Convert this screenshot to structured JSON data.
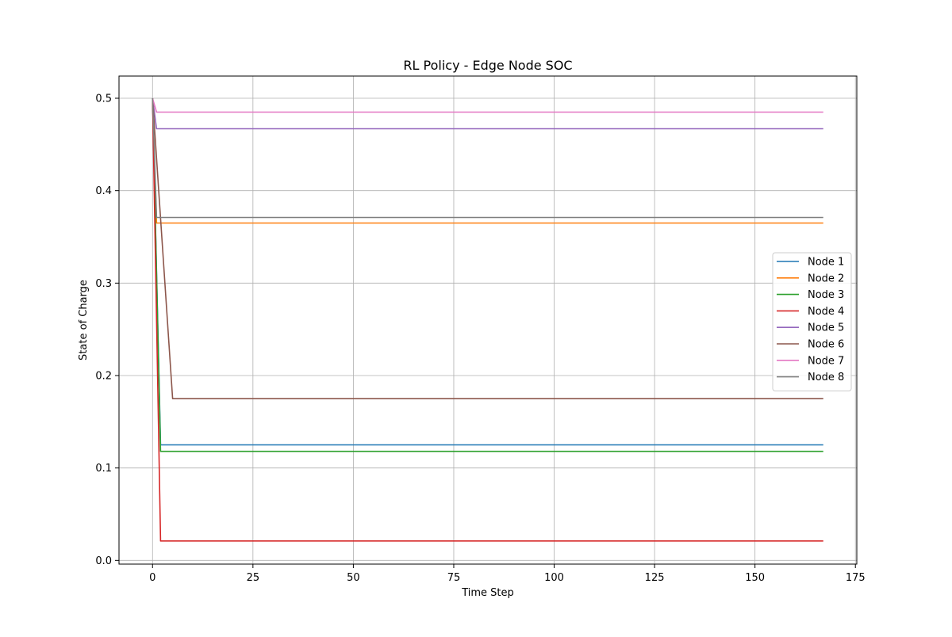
{
  "chart_data": {
    "type": "line",
    "title": "RL Policy - Edge Node SOC",
    "xlabel": "Time Step",
    "ylabel": "State of Charge",
    "xlim": [
      -8.35,
      175.35
    ],
    "ylim": [
      -0.004,
      0.524
    ],
    "xticks": [
      0,
      25,
      50,
      75,
      100,
      125,
      150,
      175
    ],
    "yticks": [
      0.0,
      0.1,
      0.2,
      0.3,
      0.4,
      0.5
    ],
    "xtick_labels": [
      "0",
      "25",
      "50",
      "75",
      "100",
      "125",
      "150",
      "175"
    ],
    "ytick_labels": [
      "0.0",
      "0.1",
      "0.2",
      "0.3",
      "0.4",
      "0.5"
    ],
    "grid": true,
    "legend_position": "center right",
    "series": [
      {
        "name": "Node 1",
        "color": "#1f77b4",
        "points": [
          [
            0,
            0.5
          ],
          [
            2,
            0.125
          ],
          [
            167,
            0.125
          ]
        ]
      },
      {
        "name": "Node 2",
        "color": "#ff7f0e",
        "points": [
          [
            0,
            0.5
          ],
          [
            1,
            0.365
          ],
          [
            167,
            0.365
          ]
        ]
      },
      {
        "name": "Node 3",
        "color": "#2ca02c",
        "points": [
          [
            0,
            0.5
          ],
          [
            2,
            0.118
          ],
          [
            167,
            0.118
          ]
        ]
      },
      {
        "name": "Node 4",
        "color": "#d62728",
        "points": [
          [
            0,
            0.5
          ],
          [
            2,
            0.021
          ],
          [
            167,
            0.021
          ]
        ]
      },
      {
        "name": "Node 5",
        "color": "#9467bd",
        "points": [
          [
            0,
            0.5
          ],
          [
            1,
            0.467
          ],
          [
            167,
            0.467
          ]
        ]
      },
      {
        "name": "Node 6",
        "color": "#8c564b",
        "points": [
          [
            0,
            0.5
          ],
          [
            5,
            0.175
          ],
          [
            167,
            0.175
          ]
        ]
      },
      {
        "name": "Node 7",
        "color": "#e377c2",
        "points": [
          [
            0,
            0.5
          ],
          [
            1,
            0.485
          ],
          [
            167,
            0.485
          ]
        ]
      },
      {
        "name": "Node 8",
        "color": "#7f7f7f",
        "points": [
          [
            0,
            0.5
          ],
          [
            1,
            0.371
          ],
          [
            167,
            0.371
          ]
        ]
      }
    ]
  }
}
